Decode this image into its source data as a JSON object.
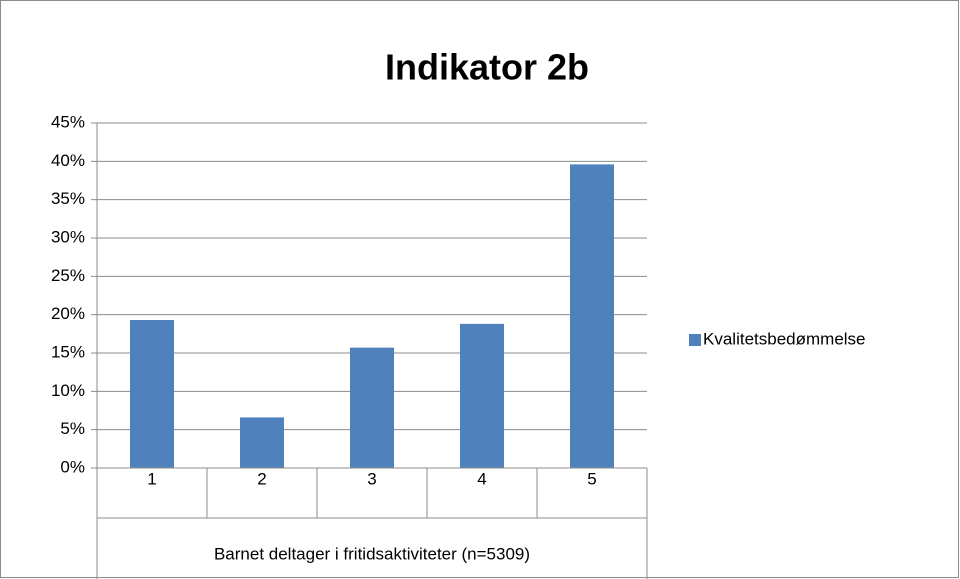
{
  "chart_data": {
    "type": "bar",
    "title": "Indikator 2b",
    "x_label": "Barnet deltager i fritidsaktiviteter (n=5309)",
    "categories": [
      "1",
      "2",
      "3",
      "4",
      "5"
    ],
    "series": [
      {
        "name": "Kvalitetsbedømmelse",
        "color": "#4f81bd",
        "values": [
          19.3,
          6.6,
          15.7,
          18.8,
          39.6
        ]
      }
    ],
    "ylim": [
      0,
      45
    ],
    "yticks": [
      {
        "value": 0,
        "label": "0%"
      },
      {
        "value": 5,
        "label": "5%"
      },
      {
        "value": 10,
        "label": "10%"
      },
      {
        "value": 15,
        "label": "15%"
      },
      {
        "value": 20,
        "label": "20%"
      },
      {
        "value": 25,
        "label": "25%"
      },
      {
        "value": 30,
        "label": "30%"
      },
      {
        "value": 35,
        "label": "35%"
      },
      {
        "value": 40,
        "label": "40%"
      },
      {
        "value": 45,
        "label": "45%"
      }
    ],
    "grid": true,
    "legend": "right"
  }
}
